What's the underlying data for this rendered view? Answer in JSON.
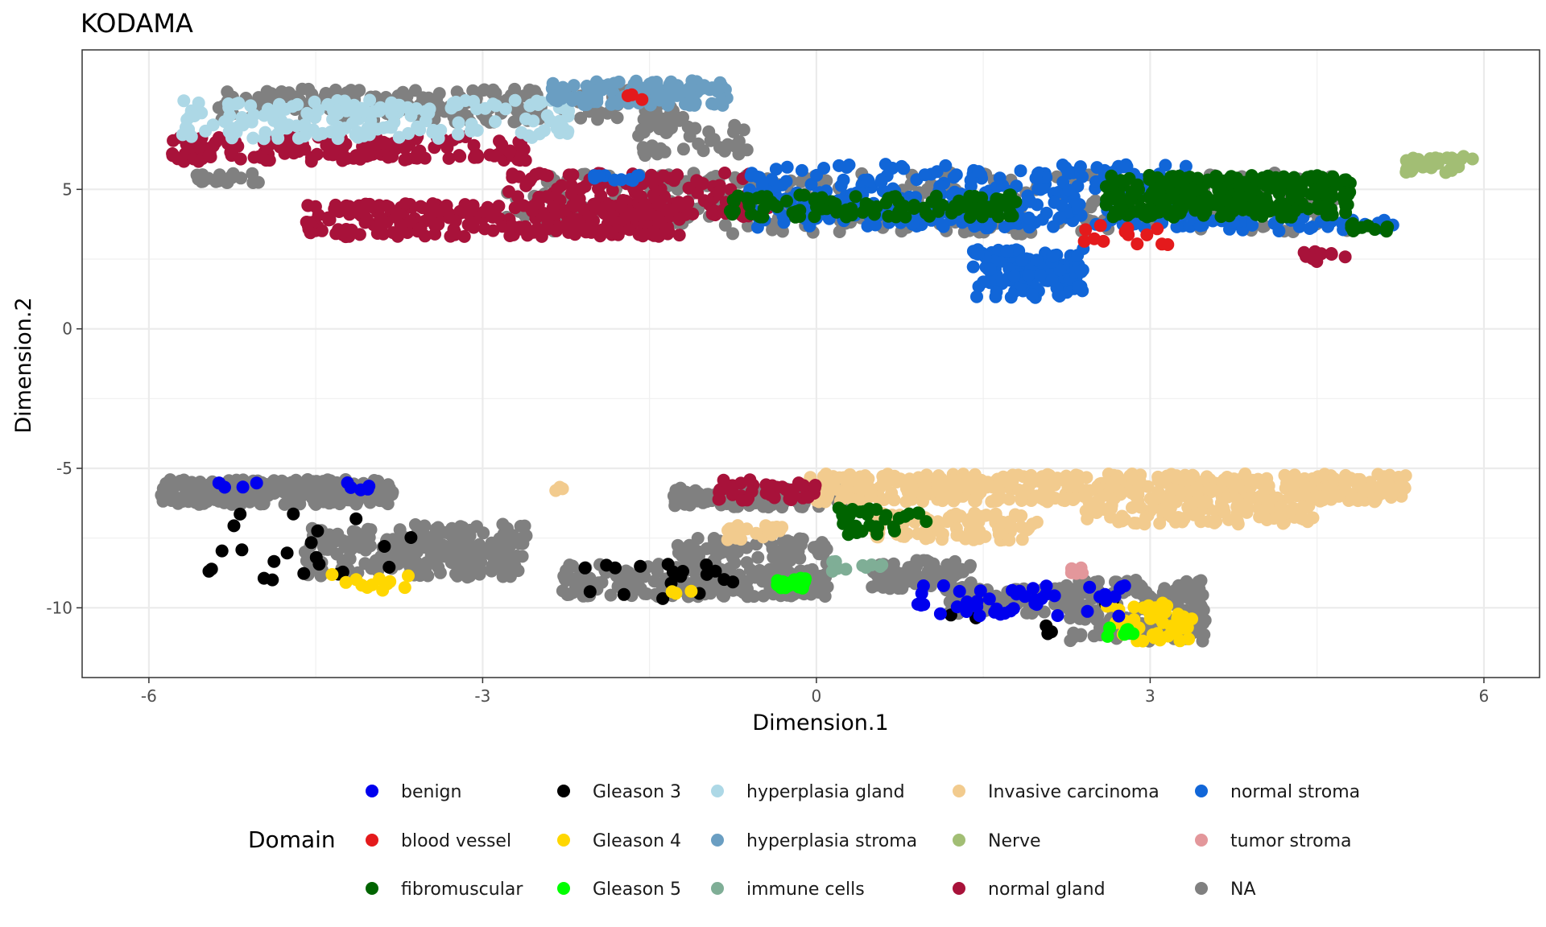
{
  "chart_data": {
    "type": "scatter",
    "title": "KODAMA",
    "xlabel": "Dimension.1",
    "ylabel": "Dimension.2",
    "xlim": [
      -6.6,
      6.5
    ],
    "ylim": [
      -12.5,
      10.0
    ],
    "xticks": [
      -6,
      -3,
      0,
      3,
      6
    ],
    "yticks": [
      -10,
      -5,
      0,
      5
    ],
    "grid": true,
    "legend": {
      "title": "Domain",
      "position": "bottom",
      "entries": [
        {
          "name": "benign",
          "color": "#0000ee"
        },
        {
          "name": "blood vessel",
          "color": "#e41a1c"
        },
        {
          "name": "fibromuscular",
          "color": "#006400"
        },
        {
          "name": "Gleason 3",
          "color": "#000000"
        },
        {
          "name": "Gleason 4",
          "color": "#ffd700"
        },
        {
          "name": "Gleason 5",
          "color": "#00ff00"
        },
        {
          "name": "hyperplasia gland",
          "color": "#add8e6"
        },
        {
          "name": "hyperplasia stroma",
          "color": "#6a9ec2"
        },
        {
          "name": "immune cells",
          "color": "#7fae96"
        },
        {
          "name": "Invasive carcinoma",
          "color": "#f2cb8e"
        },
        {
          "name": "Nerve",
          "color": "#a2be74"
        },
        {
          "name": "normal gland",
          "color": "#a8123a"
        },
        {
          "name": "normal stroma",
          "color": "#1166d8"
        },
        {
          "name": "tumor stroma",
          "color": "#e3979b"
        },
        {
          "name": "NA",
          "color": "#808080"
        }
      ]
    },
    "series": [
      {
        "name": "NA",
        "color": "#808080",
        "clusters": [
          {
            "x": [
              -5.9,
              -3.8
            ],
            "y": [
              -6.3,
              -5.4
            ],
            "n": 260
          },
          {
            "x": [
              -4.6,
              -2.6
            ],
            "y": [
              -8.9,
              -7.0
            ],
            "n": 200
          },
          {
            "x": [
              -3.9,
              -2.7
            ],
            "y": [
              -8.2,
              -7.5
            ],
            "n": 70
          },
          {
            "x": [
              -2.3,
              -0.9
            ],
            "y": [
              -9.6,
              -8.4
            ],
            "n": 110
          },
          {
            "x": [
              -1.3,
              0.1
            ],
            "y": [
              -9.6,
              -7.5
            ],
            "n": 200
          },
          {
            "x": [
              -1.3,
              0.3
            ],
            "y": [
              -6.4,
              -5.7
            ],
            "n": 110
          },
          {
            "x": [
              0.5,
              1.4
            ],
            "y": [
              -9.4,
              -8.3
            ],
            "n": 90
          },
          {
            "x": [
              1.2,
              2.5
            ],
            "y": [
              -10.2,
              -9.3
            ],
            "n": 80
          },
          {
            "x": [
              2.2,
              3.5
            ],
            "y": [
              -11.2,
              -9.0
            ],
            "n": 170
          },
          {
            "x": [
              -5.4,
              -1.2
            ],
            "y": [
              7.4,
              8.6
            ],
            "n": 220
          },
          {
            "x": [
              -1.6,
              -0.6
            ],
            "y": [
              6.2,
              7.3
            ],
            "n": 40
          },
          {
            "x": [
              -2.8,
              4.8
            ],
            "y": [
              3.4,
              5.6
            ],
            "n": 360
          },
          {
            "x": [
              -5.6,
              -5.0
            ],
            "y": [
              5.2,
              5.6
            ],
            "n": 20
          }
        ]
      },
      {
        "name": "Invasive carcinoma",
        "color": "#f2cb8e",
        "clusters": [
          {
            "x": [
              -0.1,
              5.3
            ],
            "y": [
              -6.2,
              -5.2
            ],
            "n": 520
          },
          {
            "x": [
              2.4,
              4.5
            ],
            "y": [
              -7.0,
              -6.2
            ],
            "n": 90
          },
          {
            "x": [
              0.5,
              2.0
            ],
            "y": [
              -7.6,
              -6.6
            ],
            "n": 90
          },
          {
            "x": [
              -0.8,
              -0.3
            ],
            "y": [
              -7.6,
              -7.0
            ],
            "n": 20
          },
          {
            "x": [
              -2.4,
              -2.1
            ],
            "y": [
              -5.8,
              -5.6
            ],
            "n": 3
          }
        ]
      },
      {
        "name": "normal gland",
        "color": "#a8123a",
        "clusters": [
          {
            "x": [
              -5.8,
              -2.6
            ],
            "y": [
              6.0,
              6.9
            ],
            "n": 170
          },
          {
            "x": [
              -4.6,
              -1.2
            ],
            "y": [
              3.3,
              4.5
            ],
            "n": 260
          },
          {
            "x": [
              -2.8,
              -0.4
            ],
            "y": [
              4.0,
              5.6
            ],
            "n": 130
          },
          {
            "x": [
              -0.9,
              0.0
            ],
            "y": [
              -6.2,
              -5.4
            ],
            "n": 45
          },
          {
            "x": [
              4.3,
              4.8
            ],
            "y": [
              2.4,
              2.8
            ],
            "n": 12
          }
        ]
      },
      {
        "name": "normal stroma",
        "color": "#1166d8",
        "clusters": [
          {
            "x": [
              -0.6,
              3.5
            ],
            "y": [
              3.6,
              5.9
            ],
            "n": 360
          },
          {
            "x": [
              1.4,
              2.4
            ],
            "y": [
              1.1,
              2.9
            ],
            "n": 120
          },
          {
            "x": [
              3.4,
              5.2
            ],
            "y": [
              3.5,
              4.0
            ],
            "n": 40
          },
          {
            "x": [
              -2.1,
              -1.5
            ],
            "y": [
              5.2,
              5.5
            ],
            "n": 10
          }
        ]
      },
      {
        "name": "fibromuscular",
        "color": "#006400",
        "clusters": [
          {
            "x": [
              2.6,
              4.8
            ],
            "y": [
              4.0,
              5.5
            ],
            "n": 300
          },
          {
            "x": [
              -0.8,
              1.8
            ],
            "y": [
              4.0,
              4.8
            ],
            "n": 110
          },
          {
            "x": [
              0.2,
              1.0
            ],
            "y": [
              -7.4,
              -6.4
            ],
            "n": 35
          },
          {
            "x": [
              4.8,
              5.2
            ],
            "y": [
              3.5,
              3.8
            ],
            "n": 12
          }
        ]
      },
      {
        "name": "hyperplasia gland",
        "color": "#add8e6",
        "clusters": [
          {
            "x": [
              -5.7,
              -2.2
            ],
            "y": [
              6.8,
              8.2
            ],
            "n": 170
          }
        ]
      },
      {
        "name": "hyperplasia stroma",
        "color": "#6a9ec2",
        "clusters": [
          {
            "x": [
              -2.4,
              -0.8
            ],
            "y": [
              8.0,
              8.9
            ],
            "n": 120
          }
        ]
      },
      {
        "name": "Nerve",
        "color": "#a2be74",
        "clusters": [
          {
            "x": [
              5.3,
              5.9
            ],
            "y": [
              5.6,
              6.2
            ],
            "n": 30
          }
        ]
      },
      {
        "name": "blood vessel",
        "color": "#e41a1c",
        "clusters": [
          {
            "x": [
              -1.7,
              -1.5
            ],
            "y": [
              8.2,
              8.4
            ],
            "n": 3
          },
          {
            "x": [
              2.4,
              3.2
            ],
            "y": [
              3.0,
              3.8
            ],
            "n": 14
          }
        ]
      },
      {
        "name": "Gleason 3",
        "color": "#000000",
        "clusters": [
          {
            "x": [
              -5.6,
              -3.6
            ],
            "y": [
              -9.0,
              -6.6
            ],
            "n": 22
          },
          {
            "x": [
              -2.1,
              -0.7
            ],
            "y": [
              -9.7,
              -8.4
            ],
            "n": 18
          },
          {
            "x": [
              0.6,
              3.0
            ],
            "y": [
              -11.2,
              -9.3
            ],
            "n": 8
          }
        ]
      },
      {
        "name": "Gleason 4",
        "color": "#ffd700",
        "clusters": [
          {
            "x": [
              -4.4,
              -3.6
            ],
            "y": [
              -9.4,
              -8.8
            ],
            "n": 12
          },
          {
            "x": [
              2.6,
              3.4
            ],
            "y": [
              -11.3,
              -9.8
            ],
            "n": 40
          },
          {
            "x": [
              -1.3,
              -1.1
            ],
            "y": [
              -9.5,
              -9.3
            ],
            "n": 3
          }
        ]
      },
      {
        "name": "benign",
        "color": "#0000ee",
        "clusters": [
          {
            "x": [
              -5.4,
              -4.0
            ],
            "y": [
              -5.8,
              -5.5
            ],
            "n": 10
          },
          {
            "x": [
              0.9,
              2.8
            ],
            "y": [
              -10.3,
              -9.1
            ],
            "n": 45
          }
        ]
      },
      {
        "name": "Gleason 5",
        "color": "#00ff00",
        "clusters": [
          {
            "x": [
              -0.4,
              -0.1
            ],
            "y": [
              -9.3,
              -8.9
            ],
            "n": 25
          },
          {
            "x": [
              2.6,
              2.9
            ],
            "y": [
              -11.1,
              -10.6
            ],
            "n": 6
          }
        ]
      },
      {
        "name": "immune cells",
        "color": "#7fae96",
        "clusters": [
          {
            "x": [
              0.1,
              0.6
            ],
            "y": [
              -8.7,
              -8.3
            ],
            "n": 10
          }
        ]
      },
      {
        "name": "tumor stroma",
        "color": "#e3979b",
        "clusters": [
          {
            "x": [
              2.2,
              2.5
            ],
            "y": [
              -8.8,
              -8.4
            ],
            "n": 5
          }
        ]
      }
    ]
  }
}
